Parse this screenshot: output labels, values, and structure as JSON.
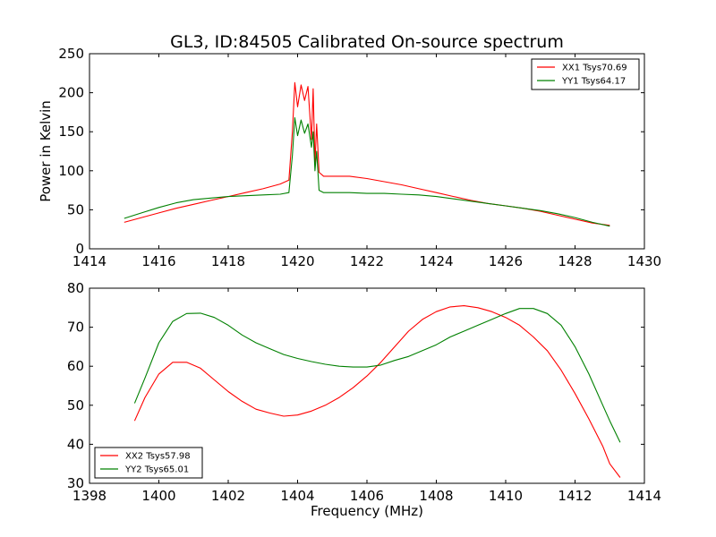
{
  "title": "GL3, ID:84505 Calibrated On-source spectrum",
  "colors": {
    "red": "#ff0000",
    "green": "#008000"
  },
  "chart_data": [
    {
      "type": "line",
      "ylabel": "Power in Kelvin",
      "xlabel": "",
      "xlim": [
        1414,
        1430
      ],
      "ylim": [
        0,
        250
      ],
      "xticks": [
        1414,
        1416,
        1418,
        1420,
        1422,
        1424,
        1426,
        1428,
        1430
      ],
      "yticks": [
        0,
        50,
        100,
        150,
        200,
        250
      ],
      "legend_position": "top-right",
      "series": [
        {
          "name": "XX1 Tsys70.69",
          "color": "#ff0000",
          "points": [
            [
              1415.0,
              34
            ],
            [
              1415.5,
              40
            ],
            [
              1416.0,
              46
            ],
            [
              1416.5,
              52
            ],
            [
              1417.0,
              57
            ],
            [
              1417.5,
              62
            ],
            [
              1418.0,
              67
            ],
            [
              1418.5,
              72
            ],
            [
              1419.0,
              77
            ],
            [
              1419.5,
              83
            ],
            [
              1419.75,
              88
            ],
            [
              1419.85,
              150
            ],
            [
              1419.92,
              213
            ],
            [
              1420.0,
              182
            ],
            [
              1420.1,
              210
            ],
            [
              1420.2,
              190
            ],
            [
              1420.3,
              208
            ],
            [
              1420.4,
              140
            ],
            [
              1420.45,
              205
            ],
            [
              1420.5,
              110
            ],
            [
              1420.55,
              160
            ],
            [
              1420.62,
              98
            ],
            [
              1420.75,
              93
            ],
            [
              1421.5,
              93
            ],
            [
              1422.0,
              90
            ],
            [
              1422.5,
              86
            ],
            [
              1423.0,
              82
            ],
            [
              1423.5,
              77
            ],
            [
              1424.0,
              72
            ],
            [
              1424.5,
              67
            ],
            [
              1425.0,
              62
            ],
            [
              1425.5,
              58
            ],
            [
              1426.0,
              55
            ],
            [
              1426.5,
              52
            ],
            [
              1427.0,
              48
            ],
            [
              1427.5,
              43
            ],
            [
              1428.0,
              38
            ],
            [
              1428.5,
              33
            ],
            [
              1429.0,
              30
            ]
          ]
        },
        {
          "name": "YY1 Tsys64.17",
          "color": "#008000",
          "points": [
            [
              1415.0,
              39
            ],
            [
              1415.5,
              46
            ],
            [
              1416.0,
              53
            ],
            [
              1416.5,
              59
            ],
            [
              1417.0,
              63
            ],
            [
              1417.5,
              65
            ],
            [
              1418.0,
              67
            ],
            [
              1418.5,
              68
            ],
            [
              1419.0,
              69
            ],
            [
              1419.5,
              70
            ],
            [
              1419.75,
              72
            ],
            [
              1419.85,
              120
            ],
            [
              1419.92,
              168
            ],
            [
              1420.0,
              145
            ],
            [
              1420.1,
              165
            ],
            [
              1420.2,
              148
            ],
            [
              1420.3,
              160
            ],
            [
              1420.4,
              130
            ],
            [
              1420.45,
              150
            ],
            [
              1420.5,
              100
            ],
            [
              1420.55,
              125
            ],
            [
              1420.62,
              75
            ],
            [
              1420.75,
              72
            ],
            [
              1421.5,
              72
            ],
            [
              1422.0,
              71
            ],
            [
              1422.5,
              71
            ],
            [
              1423.0,
              70
            ],
            [
              1423.5,
              69
            ],
            [
              1424.0,
              67
            ],
            [
              1424.5,
              64
            ],
            [
              1425.0,
              61
            ],
            [
              1425.5,
              58
            ],
            [
              1426.0,
              55
            ],
            [
              1426.5,
              52
            ],
            [
              1427.0,
              49
            ],
            [
              1427.5,
              45
            ],
            [
              1428.0,
              40
            ],
            [
              1428.5,
              34
            ],
            [
              1429.0,
              29
            ]
          ]
        }
      ]
    },
    {
      "type": "line",
      "ylabel": "",
      "xlabel": "Frequency (MHz)",
      "xlim": [
        1398,
        1414
      ],
      "ylim": [
        30,
        80
      ],
      "xticks": [
        1398,
        1400,
        1402,
        1404,
        1406,
        1408,
        1410,
        1412,
        1414
      ],
      "yticks": [
        30,
        40,
        50,
        60,
        70,
        80
      ],
      "legend_position": "bottom-left",
      "series": [
        {
          "name": "XX2 Tsys57.98",
          "color": "#ff0000",
          "points": [
            [
              1399.3,
              46
            ],
            [
              1399.6,
              52
            ],
            [
              1400.0,
              58
            ],
            [
              1400.4,
              61
            ],
            [
              1400.8,
              61
            ],
            [
              1401.2,
              59.5
            ],
            [
              1401.6,
              56.5
            ],
            [
              1402.0,
              53.5
            ],
            [
              1402.4,
              51
            ],
            [
              1402.8,
              49
            ],
            [
              1403.2,
              48
            ],
            [
              1403.6,
              47.2
            ],
            [
              1404.0,
              47.5
            ],
            [
              1404.4,
              48.5
            ],
            [
              1404.8,
              50
            ],
            [
              1405.2,
              52
            ],
            [
              1405.6,
              54.5
            ],
            [
              1406.0,
              57.5
            ],
            [
              1406.4,
              61
            ],
            [
              1406.8,
              65
            ],
            [
              1407.2,
              69
            ],
            [
              1407.6,
              72
            ],
            [
              1408.0,
              74
            ],
            [
              1408.4,
              75.2
            ],
            [
              1408.8,
              75.5
            ],
            [
              1409.2,
              75
            ],
            [
              1409.6,
              74
            ],
            [
              1410.0,
              72.5
            ],
            [
              1410.4,
              70.5
            ],
            [
              1410.8,
              67.5
            ],
            [
              1411.2,
              64
            ],
            [
              1411.6,
              59
            ],
            [
              1412.0,
              53
            ],
            [
              1412.4,
              46.5
            ],
            [
              1412.8,
              39.5
            ],
            [
              1413.0,
              35
            ],
            [
              1413.3,
              31.5
            ]
          ]
        },
        {
          "name": "YY2 Tsys65.01",
          "color": "#008000",
          "points": [
            [
              1399.3,
              50.5
            ],
            [
              1399.6,
              57
            ],
            [
              1400.0,
              66
            ],
            [
              1400.4,
              71.5
            ],
            [
              1400.8,
              73.5
            ],
            [
              1401.2,
              73.6
            ],
            [
              1401.6,
              72.5
            ],
            [
              1402.0,
              70.5
            ],
            [
              1402.4,
              68
            ],
            [
              1402.8,
              66
            ],
            [
              1403.2,
              64.5
            ],
            [
              1403.6,
              63
            ],
            [
              1404.0,
              62
            ],
            [
              1404.4,
              61.2
            ],
            [
              1404.8,
              60.5
            ],
            [
              1405.2,
              60
            ],
            [
              1405.6,
              59.8
            ],
            [
              1406.0,
              59.8
            ],
            [
              1406.4,
              60.3
            ],
            [
              1406.8,
              61.5
            ],
            [
              1407.2,
              62.5
            ],
            [
              1407.6,
              64
            ],
            [
              1408.0,
              65.5
            ],
            [
              1408.4,
              67.5
            ],
            [
              1408.8,
              69
            ],
            [
              1409.2,
              70.5
            ],
            [
              1409.6,
              72
            ],
            [
              1410.0,
              73.5
            ],
            [
              1410.4,
              74.8
            ],
            [
              1410.8,
              74.8
            ],
            [
              1411.2,
              73.5
            ],
            [
              1411.6,
              70.5
            ],
            [
              1412.0,
              65
            ],
            [
              1412.4,
              58
            ],
            [
              1412.8,
              50
            ],
            [
              1413.0,
              46
            ],
            [
              1413.3,
              40.5
            ]
          ]
        }
      ]
    }
  ]
}
